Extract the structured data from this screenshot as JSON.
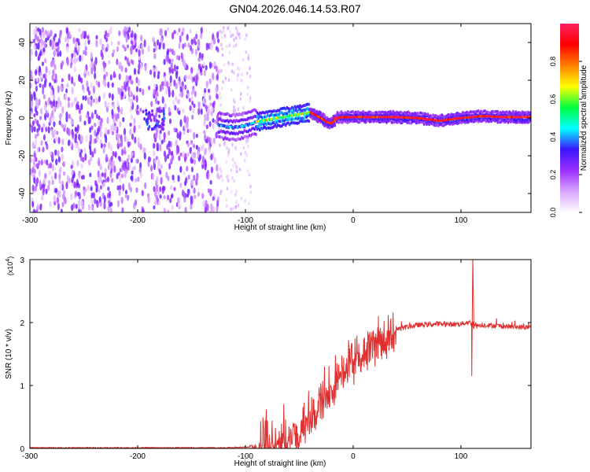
{
  "title": "GN04.2026.046.14.53.R07",
  "chart_data": [
    {
      "type": "heatmap",
      "xlabel": "Height of straight line (km)",
      "ylabel": "Frequency (Hz)",
      "xlim": [
        -300,
        165
      ],
      "ylim": [
        -50,
        50
      ],
      "xticks": [
        -300,
        -200,
        -100,
        0,
        100
      ],
      "yticks": [
        -40,
        -20,
        0,
        20,
        40
      ],
      "grid": false,
      "colorbar": {
        "label": "Normalized spectral amplitude",
        "range": [
          0,
          1
        ],
        "ticks": [
          "0.0",
          "0.2",
          "0.4",
          "0.6",
          "0.8"
        ],
        "colors": [
          "#ffffff",
          "#d9a6ff",
          "#9b30ff",
          "#3b14ff",
          "#00ffff",
          "#00ff40",
          "#ffff00",
          "#ff8000",
          "#ff0000",
          "#ff2060"
        ]
      },
      "regions": [
        {
          "x": [
            -300,
            -125
          ],
          "freq": [
            -50,
            47
          ],
          "amp": 0.15
        },
        {
          "x": [
            -125,
            -100
          ],
          "freq": [
            -8,
            5
          ],
          "amp": 0.35
        },
        {
          "x": [
            -100,
            -40
          ],
          "freq": [
            -5,
            5
          ],
          "amp": 0.55
        },
        {
          "x": [
            -40,
            165
          ],
          "freq": [
            -1,
            1
          ],
          "amp": 0.95
        }
      ],
      "ridge": {
        "x": [
          -125,
          -110,
          -100,
          -90,
          -80,
          -70,
          -60,
          -50,
          -40,
          -30,
          -25,
          -20,
          -15,
          -10,
          0,
          20,
          40,
          60,
          80,
          100,
          120,
          140,
          165
        ],
        "freq": [
          -4,
          -5,
          -4,
          -2,
          -1,
          0,
          1,
          2,
          3,
          0,
          -2,
          -3,
          0,
          0.5,
          0.5,
          0.5,
          0.5,
          0,
          -1.5,
          0,
          1,
          0.5,
          0.5
        ]
      }
    },
    {
      "type": "line",
      "xlabel": "Height of straight line (km)",
      "ylabel": "SNR (10 * v/v)",
      "multiplier": "(x10",
      "multiplier_exp": "4",
      "multiplier_close": ")",
      "xlim": [
        -300,
        165
      ],
      "ylim": [
        0,
        3
      ],
      "xticks": [
        -300,
        -200,
        -100,
        0,
        100
      ],
      "yticks": [
        0,
        1,
        2,
        3
      ],
      "grid": false,
      "series": [
        {
          "color": "#e03030",
          "x": [
            -300,
            -200,
            -120,
            -100,
            -90,
            -80,
            -70,
            -60,
            -50,
            -40,
            -30,
            -20,
            -10,
            0,
            10,
            20,
            30,
            40,
            50,
            60,
            70,
            80,
            90,
            100,
            105,
            110,
            115,
            120,
            130,
            140,
            150,
            165
          ],
          "y": [
            0.01,
            0.01,
            0.01,
            0.02,
            0.03,
            0.06,
            0.12,
            0.2,
            0.35,
            0.55,
            0.75,
            1.0,
            1.25,
            1.45,
            1.6,
            1.72,
            1.8,
            1.88,
            1.93,
            1.96,
            1.97,
            1.98,
            1.97,
            1.98,
            2.0,
            2.0,
            1.95,
            1.96,
            1.95,
            1.94,
            1.93,
            1.92
          ]
        }
      ],
      "annotations": {
        "spike": {
          "x": [
            110,
            111,
            112
          ],
          "y": [
            1.15,
            3.05,
            1.9
          ]
        }
      }
    }
  ]
}
